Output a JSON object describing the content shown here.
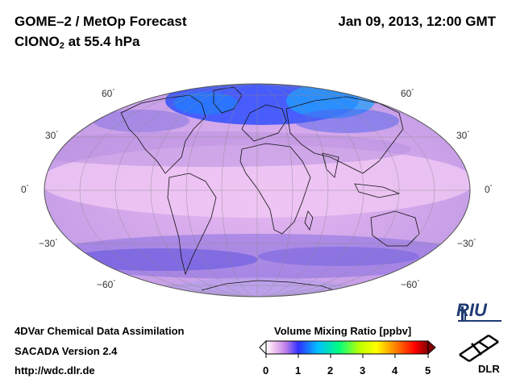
{
  "header": {
    "title": "GOME–2 / MetOp Forecast",
    "species_prefix": "ClONO",
    "species_sub": "2",
    "species_suffix": " at 55.4 hPa",
    "datetime": "Jan 09, 2013, 12:00 GMT"
  },
  "latitude_labels": {
    "left": [
      "60",
      "30",
      "0",
      "−30",
      "−60"
    ],
    "right": [
      "60",
      "30",
      "0",
      "−30",
      "−60"
    ]
  },
  "footer": {
    "line1": "4DVar Chemical Data Assimilation",
    "line2": "SACADA Version 2.4",
    "line3": "http://wdc.dlr.de"
  },
  "colorbar": {
    "title": "Volume Mixing Ratio [ppbv]",
    "ticks": [
      "0",
      "1",
      "2",
      "3",
      "4",
      "5"
    ],
    "range": [
      0,
      5
    ],
    "colors": [
      "#ffffff",
      "#f0c8f0",
      "#c080e8",
      "#3030ff",
      "#00c0ff",
      "#00ff80",
      "#c0ff00",
      "#ffff00",
      "#ff8000",
      "#ff0000",
      "#800000"
    ]
  },
  "logos": {
    "riu": "RIU",
    "dlr": "DLR"
  }
}
